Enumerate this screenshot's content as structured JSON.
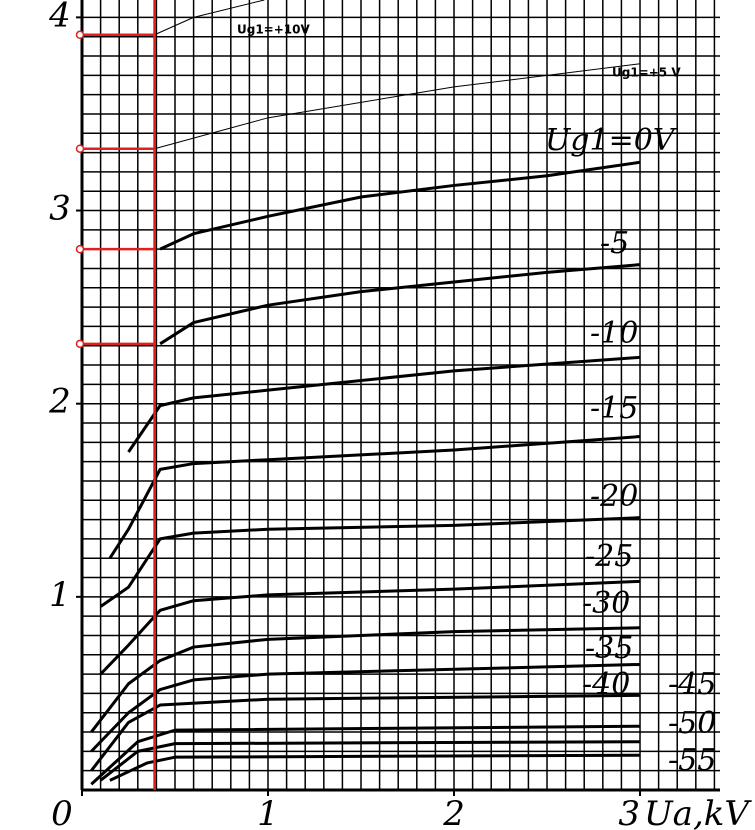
{
  "chart_data": {
    "type": "line",
    "xlabel": "Ua,kV",
    "xlim": [
      0,
      3.43
    ],
    "ylim": [
      0,
      4.09
    ],
    "xticks": [
      0,
      1,
      2,
      3
    ],
    "yticks": [
      1,
      2,
      3,
      4
    ],
    "grid": true,
    "grid_step": 0.1,
    "color": "#000000",
    "ref_x": 0.39,
    "ref_y": [
      3.91,
      3.32,
      2.8,
      2.31
    ],
    "ref_color": "#e02020",
    "series": [
      {
        "name": "Ug1=+10V",
        "color": "#000000",
        "line_width": 1,
        "x": [
          0.39,
          0.6,
          0.98
        ],
        "values": [
          3.91,
          4.0,
          4.09
        ]
      },
      {
        "name": "Ug1=+5 V",
        "color": "#000000",
        "line_width": 1,
        "x": [
          0.39,
          1,
          2,
          3
        ],
        "values": [
          3.32,
          3.48,
          3.64,
          3.76
        ]
      },
      {
        "name": "Ug1=0V",
        "color": "#000000",
        "line_width": 3,
        "x": [
          0.42,
          0.6,
          1,
          1.5,
          2,
          2.5,
          3
        ],
        "values": [
          2.8,
          2.88,
          2.97,
          3.07,
          3.13,
          3.18,
          3.25
        ]
      },
      {
        "name": "-5",
        "color": "#000000",
        "line_width": 3,
        "x": [
          0.42,
          0.6,
          1,
          1.5,
          2,
          2.5,
          3
        ],
        "values": [
          2.31,
          2.42,
          2.51,
          2.58,
          2.63,
          2.68,
          2.72
        ]
      },
      {
        "name": "-10",
        "color": "#000000",
        "line_width": 3,
        "x": [
          0.25,
          0.42,
          0.6,
          1,
          2,
          3
        ],
        "values": [
          1.75,
          1.99,
          2.03,
          2.07,
          2.17,
          2.24
        ]
      },
      {
        "name": "-15",
        "color": "#000000",
        "line_width": 3,
        "x": [
          0.15,
          0.25,
          0.42,
          0.6,
          1,
          2,
          3
        ],
        "values": [
          1.2,
          1.35,
          1.66,
          1.69,
          1.71,
          1.76,
          1.83
        ]
      },
      {
        "name": "-20",
        "color": "#000000",
        "line_width": 3,
        "x": [
          0.1,
          0.25,
          0.42,
          0.6,
          1,
          2,
          3
        ],
        "values": [
          0.95,
          1.05,
          1.3,
          1.33,
          1.35,
          1.37,
          1.41
        ]
      },
      {
        "name": "-25",
        "color": "#000000",
        "line_width": 3,
        "x": [
          0.1,
          0.25,
          0.42,
          0.6,
          1,
          2,
          3
        ],
        "values": [
          0.6,
          0.75,
          0.93,
          0.98,
          1.01,
          1.04,
          1.08
        ]
      },
      {
        "name": "-30",
        "color": "#000000",
        "line_width": 3,
        "x": [
          0.05,
          0.25,
          0.42,
          0.6,
          1,
          2,
          3
        ],
        "values": [
          0.3,
          0.55,
          0.67,
          0.74,
          0.78,
          0.82,
          0.84
        ]
      },
      {
        "name": "-35",
        "color": "#000000",
        "line_width": 3,
        "x": [
          0.05,
          0.25,
          0.42,
          0.6,
          1,
          3
        ],
        "values": [
          0.2,
          0.4,
          0.52,
          0.57,
          0.6,
          0.65
        ]
      },
      {
        "name": "-40",
        "color": "#000000",
        "line_width": 3,
        "x": [
          0.05,
          0.25,
          0.42,
          1,
          3
        ],
        "values": [
          0.1,
          0.35,
          0.44,
          0.47,
          0.49
        ]
      },
      {
        "name": "-45",
        "color": "#000000",
        "line_width": 3,
        "x": [
          0.05,
          0.3,
          0.5,
          3
        ],
        "values": [
          0.03,
          0.25,
          0.31,
          0.33
        ]
      },
      {
        "name": "-50",
        "color": "#000000",
        "line_width": 3,
        "x": [
          0.1,
          0.3,
          0.5,
          3
        ],
        "values": [
          0.05,
          0.2,
          0.24,
          0.25
        ]
      },
      {
        "name": "-55",
        "color": "#000000",
        "line_width": 3,
        "x": [
          0.15,
          0.35,
          0.5,
          3
        ],
        "values": [
          0.05,
          0.14,
          0.17,
          0.18
        ]
      }
    ]
  }
}
